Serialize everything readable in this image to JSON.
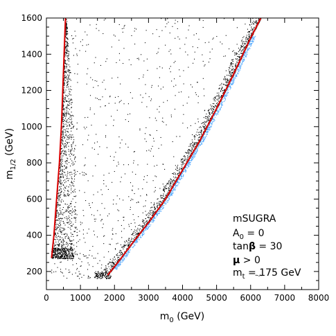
{
  "chart_data": {
    "type": "scatter",
    "title": "",
    "xlabel": {
      "main": "m",
      "sub": "0",
      "unit": " (GeV)"
    },
    "ylabel": {
      "main": "m",
      "sub": "1/2",
      "unit": " (GeV)"
    },
    "xlim": [
      0,
      8000
    ],
    "ylim": [
      100,
      1600
    ],
    "xticks": [
      0,
      1000,
      2000,
      3000,
      4000,
      5000,
      6000,
      7000,
      8000
    ],
    "yticks": [
      200,
      400,
      600,
      800,
      1000,
      1200,
      1400,
      1600
    ],
    "grid": false,
    "colors": {
      "scatter": "#000000",
      "band_blue": "#4da6ff",
      "curve": "#dd0000"
    },
    "annotations": [
      {
        "id": "model",
        "text": "mSUGRA"
      },
      {
        "id": "a0",
        "main": "A",
        "sub": "0",
        "rest": " = 0"
      },
      {
        "id": "tanb",
        "main": "tan",
        "greek": "β",
        "rest": " = 30"
      },
      {
        "id": "mu",
        "greek": "μ",
        "rest": " > 0"
      },
      {
        "id": "mt",
        "main": "m",
        "sub": "t",
        "rest": " = 175 GeV"
      }
    ],
    "series": [
      {
        "kind": "curve",
        "points": [
          [
            150,
            275
          ],
          [
            220,
            400
          ],
          [
            300,
            600
          ],
          [
            380,
            800
          ],
          [
            440,
            1000
          ],
          [
            480,
            1200
          ],
          [
            520,
            1400
          ],
          [
            560,
            1600
          ]
        ]
      },
      {
        "kind": "curve",
        "points": [
          [
            1800,
            180
          ],
          [
            2100,
            250
          ],
          [
            2500,
            350
          ],
          [
            3000,
            470
          ],
          [
            3500,
            600
          ],
          [
            4000,
            760
          ],
          [
            4500,
            920
          ],
          [
            5000,
            1100
          ],
          [
            5500,
            1290
          ],
          [
            6000,
            1490
          ],
          [
            6300,
            1600
          ]
        ]
      }
    ]
  }
}
